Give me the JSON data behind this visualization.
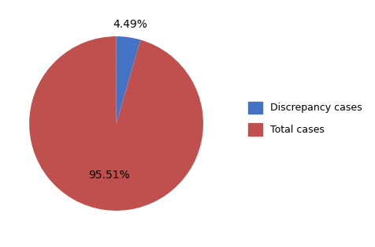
{
  "labels": [
    "Discrepancy cases",
    "Total cases"
  ],
  "values": [
    4.49,
    95.51
  ],
  "colors": [
    "#4472C4",
    "#C0504D"
  ],
  "startangle": 90,
  "legend_labels": [
    "Discrepancy cases",
    "Total cases"
  ],
  "background_color": "#FFFFFF",
  "pct_fontsize": 10,
  "legend_fontsize": 9
}
